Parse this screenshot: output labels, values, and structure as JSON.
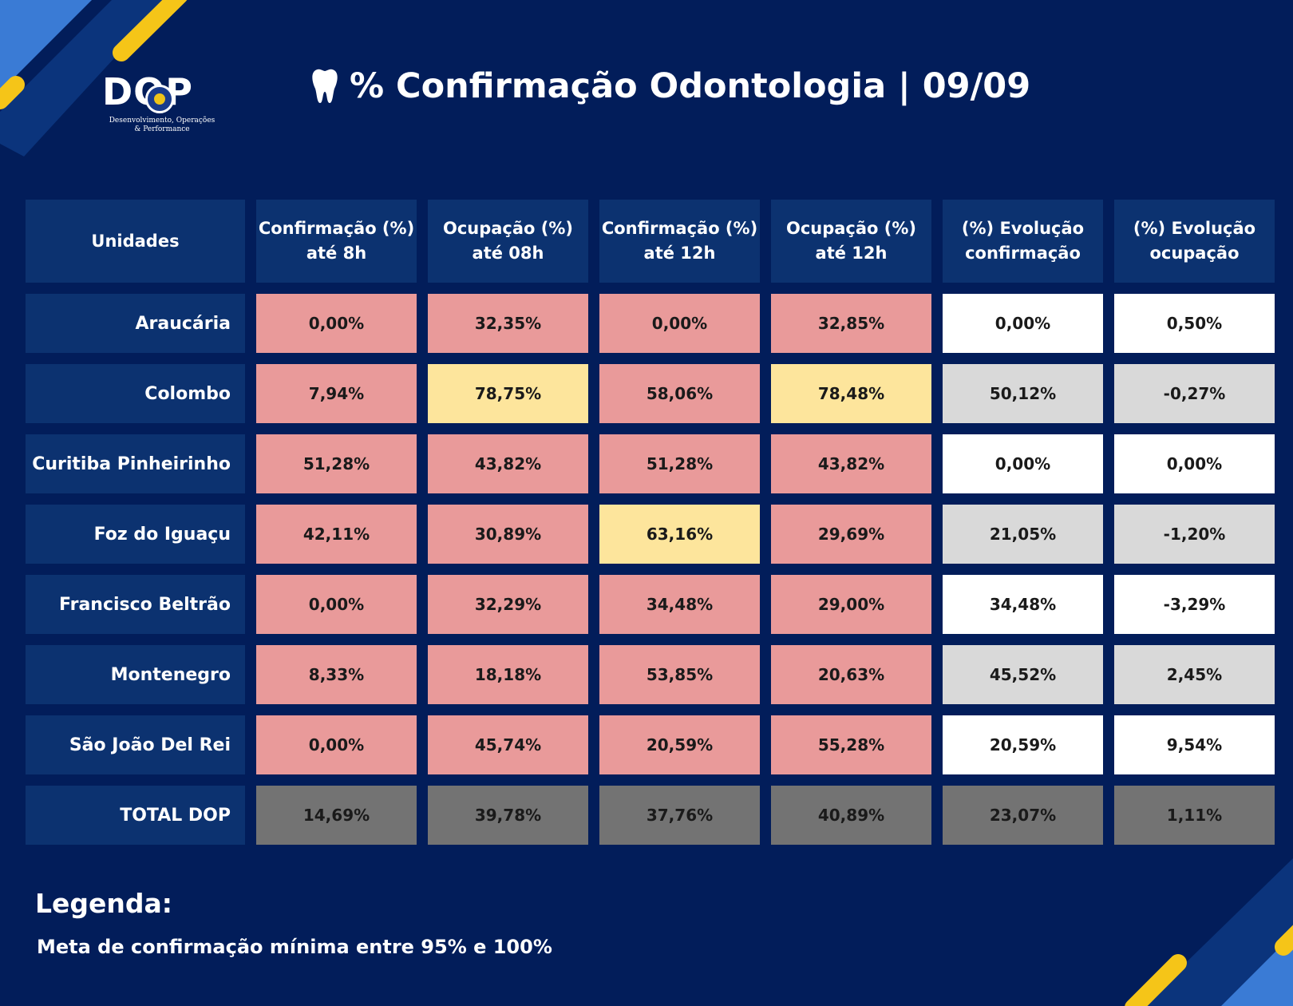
{
  "logo": {
    "word": "DOP",
    "tagline_line1": "Desenvolvimento, Operações",
    "tagline_line2": "& Performance"
  },
  "title": {
    "icon": "tooth-icon",
    "text": "% Confirmação Odontologia | 09/09"
  },
  "table": {
    "headers": [
      "Unidades",
      "Confirmação (%) até 8h",
      "Ocupação (%) até 08h",
      "Confirmação (%) até 12h",
      "Ocupação (%) até 12h",
      "(%) Evolução confirmação",
      "(%) Evolução ocupação"
    ],
    "rows": [
      {
        "unit": "Araucária",
        "values": [
          "0,00%",
          "32,35%",
          "0,00%",
          "32,85%",
          "0,00%",
          "0,50%"
        ]
      },
      {
        "unit": "Colombo",
        "values": [
          "7,94%",
          "78,75%",
          "58,06%",
          "78,48%",
          "50,12%",
          "-0,27%"
        ]
      },
      {
        "unit": "Curitiba Pinheirinho",
        "values": [
          "51,28%",
          "43,82%",
          "51,28%",
          "43,82%",
          "0,00%",
          "0,00%"
        ]
      },
      {
        "unit": "Foz do Iguaçu",
        "values": [
          "42,11%",
          "30,89%",
          "63,16%",
          "29,69%",
          "21,05%",
          "-1,20%"
        ]
      },
      {
        "unit": "Francisco Beltrão",
        "values": [
          "0,00%",
          "32,29%",
          "34,48%",
          "29,00%",
          "34,48%",
          "-3,29%"
        ]
      },
      {
        "unit": "Montenegro",
        "values": [
          "8,33%",
          "18,18%",
          "53,85%",
          "20,63%",
          "45,52%",
          "2,45%"
        ]
      },
      {
        "unit": "São João Del Rei",
        "values": [
          "0,00%",
          "45,74%",
          "20,59%",
          "55,28%",
          "20,59%",
          "9,54%"
        ]
      },
      {
        "unit": "TOTAL DOP",
        "values": [
          "14,69%",
          "39,78%",
          "37,76%",
          "40,89%",
          "23,07%",
          "1,11%"
        ]
      }
    ]
  },
  "legend": {
    "title": "Legenda:",
    "text": "Meta de confirmação mínima entre 95% e 100%"
  },
  "colors": {
    "background": "#021d5a",
    "header_cell": "#0c3270",
    "below_goal": "#e99a9a",
    "mid_range": "#fde59c",
    "evolution_light": "#ffffff",
    "evolution_alt": "#d9d9d9",
    "total_row": "#737373",
    "accent_yellow": "#f5c518",
    "accent_blue": "#3a7bd5"
  }
}
